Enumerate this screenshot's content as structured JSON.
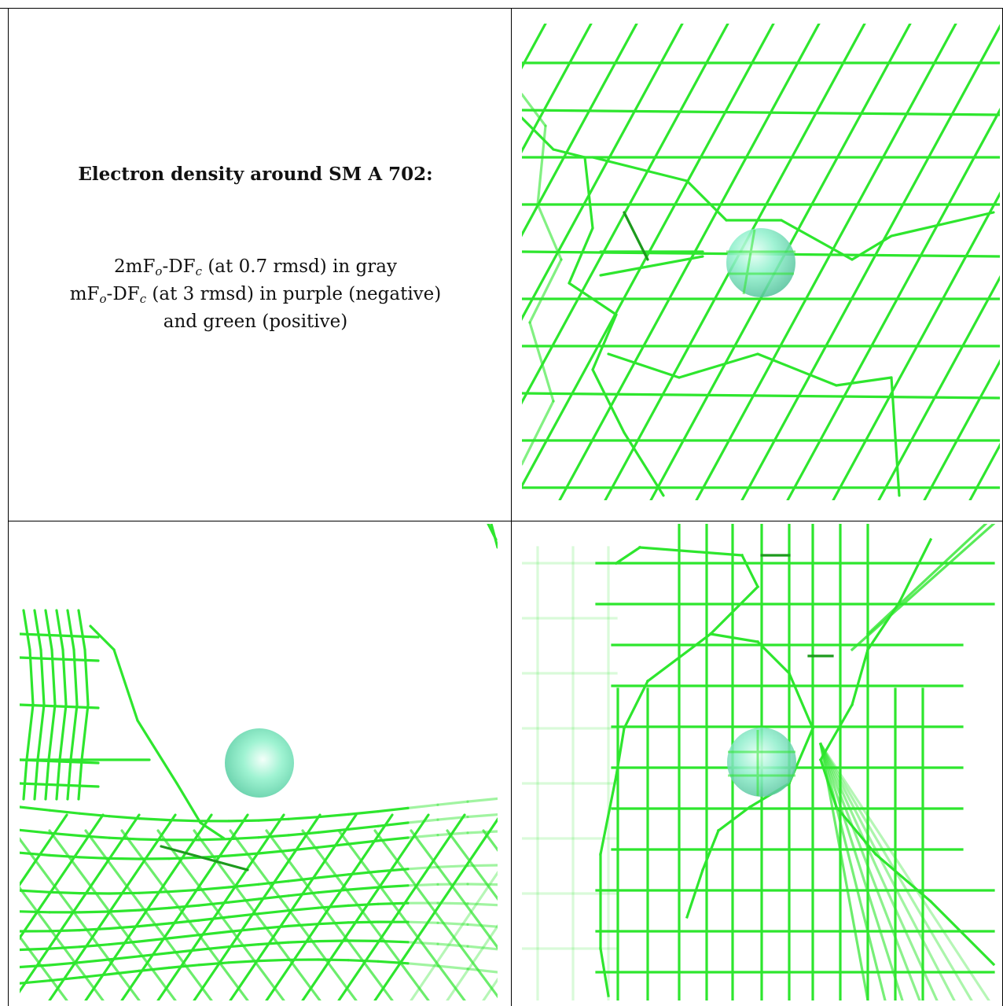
{
  "caption": {
    "title": "Electron density around SM A 702:",
    "line1": {
      "a": "2mF",
      "a_sub": "o",
      "b": "-DF",
      "b_sub": "c",
      "rest": " (at 0.7 rmsd) in gray"
    },
    "line2": {
      "a": "mF",
      "a_sub": "o",
      "b": "-DF",
      "b_sub": "c",
      "rest": " (at 3 rmsd) in purple (negative)"
    },
    "line3": "and green (positive)"
  },
  "colors": {
    "mesh_positive": "#2ee62e",
    "mesh_dark": "#1d9a1d",
    "atom": "#7fe8c0",
    "frame": "#000000"
  },
  "panels": [
    {
      "view": "top-right",
      "atom": "SM"
    },
    {
      "view": "bottom-left",
      "atom": "SM"
    },
    {
      "view": "bottom-right",
      "atom": "SM"
    }
  ]
}
